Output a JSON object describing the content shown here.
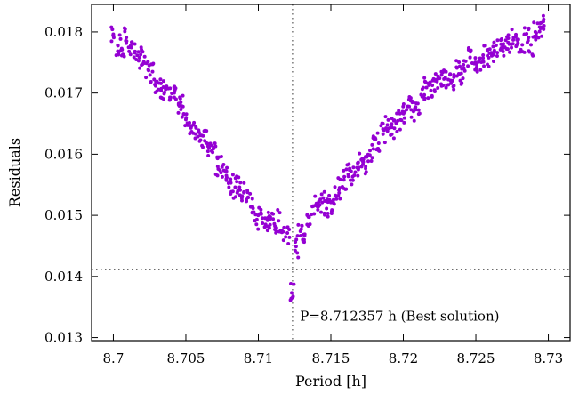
{
  "chart_data": {
    "type": "scatter",
    "xlabel": "Period [h]",
    "ylabel": "Residuals",
    "xlim": [
      8.6985,
      8.7315
    ],
    "ylim": [
      0.01295,
      0.01845
    ],
    "xticks": [
      8.7,
      8.705,
      8.71,
      8.715,
      8.72,
      8.725,
      8.73
    ],
    "xtick_labels": [
      "8.7",
      "8.705",
      "8.71",
      "8.715",
      "8.72",
      "8.725",
      "8.73"
    ],
    "yticks": [
      0.013,
      0.014,
      0.015,
      0.016,
      0.017,
      0.018
    ],
    "ytick_labels": [
      "0.013",
      "0.014",
      "0.015",
      "0.016",
      "0.017",
      "0.018"
    ],
    "grid": false,
    "point_color": "#9400d3",
    "reference_lines": {
      "best_period": 8.712357,
      "min_residual": 0.01411,
      "style": "dotted"
    },
    "annotation": {
      "text": "P=8.712357 h (Best solution)",
      "x": 8.7125,
      "y": 0.01345
    },
    "series": [
      {
        "points": [
          [
            8.7,
            0.01794
          ],
          [
            8.7003,
            0.01778
          ],
          [
            8.7006,
            0.01771
          ],
          [
            8.7009,
            0.01791
          ],
          [
            8.7012,
            0.01778
          ],
          [
            8.7015,
            0.01768
          ],
          [
            8.7018,
            0.01758
          ],
          [
            8.7021,
            0.01751
          ],
          [
            8.7024,
            0.01738
          ],
          [
            8.7027,
            0.01735
          ],
          [
            8.703,
            0.01719
          ],
          [
            8.7033,
            0.01707
          ],
          [
            8.7036,
            0.01706
          ],
          [
            8.7039,
            0.01693
          ],
          [
            8.7042,
            0.01693
          ],
          [
            8.7045,
            0.01683
          ],
          [
            8.7048,
            0.01678
          ],
          [
            8.7051,
            0.01651
          ],
          [
            8.7054,
            0.01646
          ],
          [
            8.7057,
            0.01643
          ],
          [
            8.706,
            0.01631
          ],
          [
            8.7063,
            0.01622
          ],
          [
            8.7066,
            0.0161
          ],
          [
            8.7069,
            0.01609
          ],
          [
            8.7072,
            0.0158
          ],
          [
            8.7075,
            0.01579
          ],
          [
            8.7078,
            0.01572
          ],
          [
            8.7081,
            0.01553
          ],
          [
            8.7084,
            0.01546
          ],
          [
            8.7087,
            0.01546
          ],
          [
            8.709,
            0.01537
          ],
          [
            8.7093,
            0.01529
          ],
          [
            8.7096,
            0.01514
          ],
          [
            8.7099,
            0.01493
          ],
          [
            8.7102,
            0.01502
          ],
          [
            8.7105,
            0.01485
          ],
          [
            8.7108,
            0.01494
          ],
          [
            8.7111,
            0.01486
          ],
          [
            8.7114,
            0.01491
          ],
          [
            8.7117,
            0.01473
          ],
          [
            8.712,
            0.01471
          ],
          [
            8.7123,
            0.01373
          ],
          [
            8.7126,
            0.01449
          ],
          [
            8.7129,
            0.01474
          ],
          [
            8.7132,
            0.01469
          ],
          [
            8.7135,
            0.01497
          ],
          [
            8.7138,
            0.01515
          ],
          [
            8.7141,
            0.01509
          ],
          [
            8.7144,
            0.01521
          ],
          [
            8.7147,
            0.01511
          ],
          [
            8.715,
            0.01521
          ],
          [
            8.7153,
            0.01532
          ],
          [
            8.7156,
            0.01545
          ],
          [
            8.7159,
            0.01558
          ],
          [
            8.7162,
            0.01567
          ],
          [
            8.7165,
            0.01563
          ],
          [
            8.7168,
            0.01578
          ],
          [
            8.7171,
            0.01591
          ],
          [
            8.7174,
            0.0158
          ],
          [
            8.7177,
            0.01606
          ],
          [
            8.718,
            0.01625
          ],
          [
            8.7183,
            0.01618
          ],
          [
            8.7186,
            0.01633
          ],
          [
            8.7189,
            0.01648
          ],
          [
            8.7192,
            0.01644
          ],
          [
            8.7195,
            0.01651
          ],
          [
            8.7198,
            0.01656
          ],
          [
            8.7201,
            0.01669
          ],
          [
            8.7204,
            0.01678
          ],
          [
            8.7207,
            0.0167
          ],
          [
            8.721,
            0.01683
          ],
          [
            8.7213,
            0.01694
          ],
          [
            8.7216,
            0.01709
          ],
          [
            8.7219,
            0.01704
          ],
          [
            8.7222,
            0.0172
          ],
          [
            8.7225,
            0.01724
          ],
          [
            8.7228,
            0.01723
          ],
          [
            8.7231,
            0.01722
          ],
          [
            8.7234,
            0.0172
          ],
          [
            8.7237,
            0.01741
          ],
          [
            8.724,
            0.01732
          ],
          [
            8.7243,
            0.01752
          ],
          [
            8.7246,
            0.01758
          ],
          [
            8.7249,
            0.01748
          ],
          [
            8.7252,
            0.01751
          ],
          [
            8.7255,
            0.01762
          ],
          [
            8.7258,
            0.01761
          ],
          [
            8.7261,
            0.01761
          ],
          [
            8.7264,
            0.01778
          ],
          [
            8.7267,
            0.01771
          ],
          [
            8.727,
            0.01775
          ],
          [
            8.7273,
            0.0178
          ],
          [
            8.7276,
            0.01791
          ],
          [
            8.7279,
            0.01782
          ],
          [
            8.7282,
            0.01779
          ],
          [
            8.7285,
            0.01797
          ],
          [
            8.7288,
            0.01779
          ],
          [
            8.7291,
            0.018
          ],
          [
            8.7294,
            0.01808
          ],
          [
            8.7297,
            0.0181
          ]
        ]
      }
    ]
  }
}
